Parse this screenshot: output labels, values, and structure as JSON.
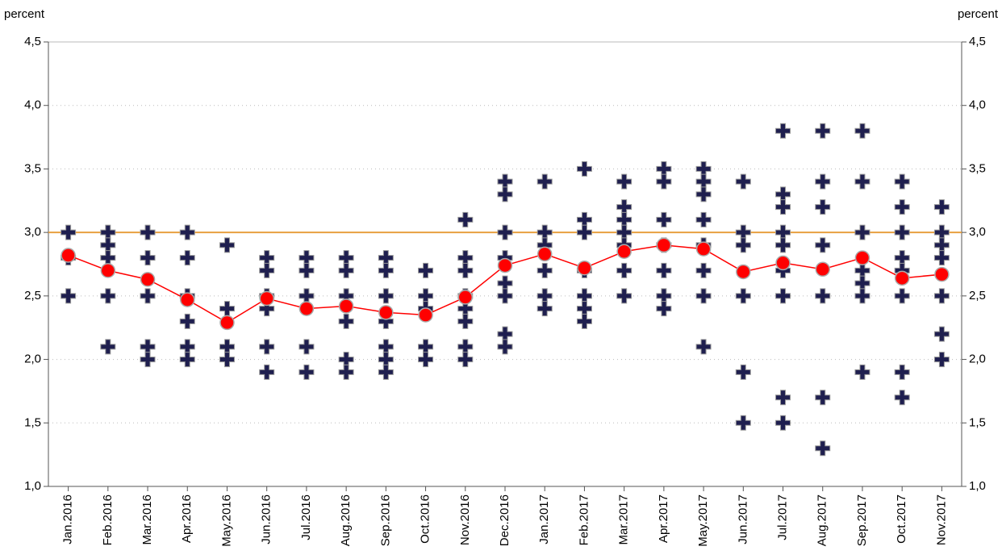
{
  "chart_data": {
    "type": "line",
    "y_label_left": "percent",
    "y_label_right": "percent",
    "categories": [
      "Jan.2016",
      "Feb.2016",
      "Mar.2016",
      "Apr.2016",
      "May.2016",
      "Jun.2016",
      "Jul.2016",
      "Aug.2016",
      "Sep.2016",
      "Oct.2016",
      "Nov.2016",
      "Dec.2016",
      "Jan.2017",
      "Feb.2017",
      "Mar.2017",
      "Apr.2017",
      "May.2017",
      "Jun.2017",
      "Jul.2017",
      "Aug.2017",
      "Sep.2017",
      "Oct.2017",
      "Nov.2017"
    ],
    "series": [
      {
        "color": "#ff0000",
        "values": [
          2.82,
          2.7,
          2.63,
          2.47,
          2.29,
          2.48,
          2.4,
          2.42,
          2.37,
          2.35,
          2.49,
          2.74,
          2.83,
          2.72,
          2.85,
          2.9,
          2.87,
          2.69,
          2.76,
          2.71,
          2.8,
          2.64,
          2.67
        ]
      }
    ],
    "forecasts_color": "#1f1f4f",
    "forecasts": [
      [
        3.0,
        2.8,
        2.5
      ],
      [
        3.0,
        2.9,
        2.8,
        2.5,
        2.1
      ],
      [
        3.0,
        2.8,
        2.5,
        2.1,
        2.0
      ],
      [
        3.0,
        2.8,
        2.5,
        2.3,
        2.1,
        2.0
      ],
      [
        2.9,
        2.4,
        2.1,
        2.0
      ],
      [
        2.8,
        2.7,
        2.5,
        2.4,
        2.1,
        1.9
      ],
      [
        2.8,
        2.7,
        2.5,
        2.1,
        1.9
      ],
      [
        2.8,
        2.7,
        2.5,
        2.3,
        2.0,
        1.9
      ],
      [
        2.8,
        2.7,
        2.5,
        2.3,
        2.1,
        2.0,
        1.9
      ],
      [
        2.7,
        2.5,
        2.4,
        2.1,
        2.0
      ],
      [
        3.1,
        2.8,
        2.7,
        2.5,
        2.4,
        2.3,
        2.1,
        2.0
      ],
      [
        3.4,
        3.3,
        3.0,
        2.8,
        2.6,
        2.5,
        2.2,
        2.1
      ],
      [
        3.4,
        3.0,
        2.9,
        2.7,
        2.5,
        2.4
      ],
      [
        3.5,
        3.1,
        3.0,
        2.7,
        2.5,
        2.4,
        2.3
      ],
      [
        3.4,
        3.2,
        3.1,
        3.0,
        2.9,
        2.7,
        2.5
      ],
      [
        3.5,
        3.4,
        3.1,
        2.9,
        2.7,
        2.5,
        2.4
      ],
      [
        3.5,
        3.4,
        3.3,
        3.1,
        2.9,
        2.7,
        2.5,
        2.1
      ],
      [
        3.4,
        3.0,
        2.9,
        2.5,
        1.9,
        1.5
      ],
      [
        3.8,
        3.3,
        3.2,
        3.0,
        2.9,
        2.7,
        2.5,
        1.7,
        1.5
      ],
      [
        3.8,
        3.4,
        3.2,
        2.9,
        2.5,
        1.7,
        1.3
      ],
      [
        3.8,
        3.4,
        3.0,
        2.7,
        2.6,
        2.5,
        1.9
      ],
      [
        3.4,
        3.2,
        3.0,
        2.8,
        2.7,
        2.5,
        1.9,
        1.7
      ],
      [
        3.2,
        3.0,
        2.9,
        2.8,
        2.5,
        2.2,
        2.0
      ]
    ],
    "reference_line": 3.0,
    "reference_color": "#e8a040",
    "ylim": [
      1.0,
      4.5
    ],
    "yticks": [
      {
        "value": 1.0,
        "label": "1,0"
      },
      {
        "value": 1.5,
        "label": "1,5"
      },
      {
        "value": 2.0,
        "label": "2,0"
      },
      {
        "value": 2.5,
        "label": "2,5"
      },
      {
        "value": 3.0,
        "label": "3,0"
      },
      {
        "value": 3.5,
        "label": "3,5"
      },
      {
        "value": 4.0,
        "label": "4,0"
      },
      {
        "value": 4.5,
        "label": "4,5"
      }
    ],
    "grid": true
  }
}
